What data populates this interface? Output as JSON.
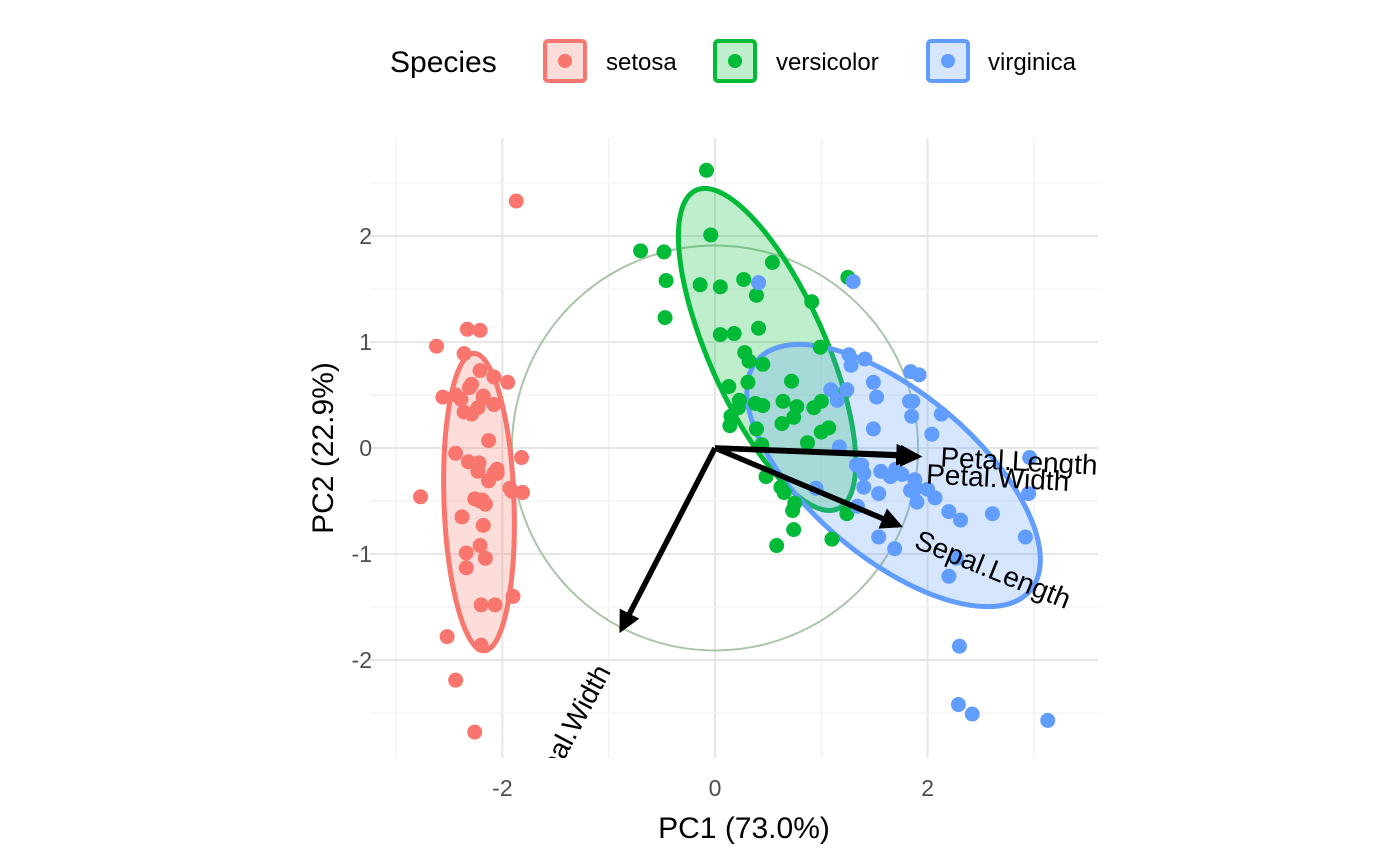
{
  "chart_data": {
    "type": "scatter",
    "subtype": "pca-biplot",
    "title": "",
    "xlabel": "PC1 (73.0%)",
    "ylabel": "PC2 (22.9%)",
    "xlim": [
      -3,
      3.6
    ],
    "ylim": [
      -2.9,
      2.9
    ],
    "x_ticks": [
      -2,
      0,
      2
    ],
    "y_ticks": [
      -2,
      -1,
      0,
      1,
      2
    ],
    "grid": true,
    "legend": {
      "title": "Species",
      "position": "top",
      "entries": [
        "setosa",
        "versicolor",
        "virginica"
      ]
    },
    "colors": {
      "setosa": "#F8766D",
      "versicolor": "#00BA38",
      "virginica": "#619CFF",
      "arrow": "#000000",
      "circle": "#a8c5a8",
      "grid_major": "#e6e6e6",
      "grid_minor": "#f0f0f0"
    },
    "series": [
      {
        "name": "setosa",
        "points": [
          [
            -2.26,
            -0.48
          ],
          [
            -2.08,
            0.67
          ],
          [
            -2.36,
            0.34
          ],
          [
            -2.29,
            0.6
          ],
          [
            -2.38,
            -0.65
          ],
          [
            -2.07,
            -1.48
          ],
          [
            -2.44,
            -0.05
          ],
          [
            -2.23,
            -0.22
          ],
          [
            -2.33,
            1.12
          ],
          [
            -2.18,
            0.47
          ],
          [
            -2.16,
            -1.04
          ],
          [
            -2.32,
            -0.13
          ],
          [
            -2.21,
            0.73
          ],
          [
            -2.62,
            0.96
          ],
          [
            -2.2,
            -1.86
          ],
          [
            -2.26,
            -2.68
          ],
          [
            -2.2,
            -1.48
          ],
          [
            -2.19,
            -0.49
          ],
          [
            -1.9,
            -1.4
          ],
          [
            -2.34,
            -1.13
          ],
          [
            -1.91,
            -0.41
          ],
          [
            -2.21,
            -0.92
          ],
          [
            -2.77,
            -0.46
          ],
          [
            -1.82,
            -0.09
          ],
          [
            -2.22,
            -0.14
          ],
          [
            -1.95,
            0.62
          ],
          [
            -2.05,
            -0.24
          ],
          [
            -2.16,
            -0.53
          ],
          [
            -2.13,
            -0.31
          ],
          [
            -2.23,
            0.38
          ],
          [
            -2.08,
            0.41
          ],
          [
            -1.81,
            -0.42
          ],
          [
            -2.44,
            -2.19
          ],
          [
            -2.52,
            -1.78
          ],
          [
            -2.18,
            0.49
          ],
          [
            -2.31,
            0.57
          ],
          [
            -1.87,
            2.33
          ],
          [
            -2.39,
            0.46
          ],
          [
            -2.29,
            0.32
          ],
          [
            -2.21,
            -0.5
          ],
          [
            -2.34,
            -0.99
          ],
          [
            -2.21,
            1.11
          ],
          [
            -2.56,
            0.48
          ],
          [
            -2.18,
            -0.73
          ],
          [
            -1.93,
            -0.38
          ],
          [
            -2.36,
            0.89
          ],
          [
            -2.08,
            -0.24
          ],
          [
            -2.44,
            0.5
          ],
          [
            -2.05,
            -0.2
          ],
          [
            -2.13,
            0.07
          ]
        ]
      },
      {
        "name": "versicolor",
        "points": [
          [
            1.1,
            -0.86
          ],
          [
            0.73,
            -0.59
          ],
          [
            1.24,
            -0.62
          ],
          [
            0.39,
            1.44
          ],
          [
            1.07,
            0.19
          ],
          [
            0.38,
            0.42
          ],
          [
            0.74,
            -0.77
          ],
          [
            -0.7,
            1.86
          ],
          [
            0.87,
            0.05
          ],
          [
            -0.04,
            2.01
          ],
          [
            -0.48,
            1.85
          ],
          [
            0.44,
            0.03
          ],
          [
            0.54,
            1.75
          ],
          [
            0.63,
            0.23
          ],
          [
            0.27,
            1.59
          ],
          [
            0.62,
            -0.37
          ],
          [
            0.45,
            0.79
          ],
          [
            0.22,
            0.38
          ],
          [
            0.91,
            1.38
          ],
          [
            0.05,
            1.52
          ],
          [
            0.75,
            -0.52
          ],
          [
            0.45,
            0.4
          ],
          [
            1.23,
            0.54
          ],
          [
            0.64,
            0.44
          ],
          [
            0.72,
            0.63
          ],
          [
            0.93,
            0.38
          ],
          [
            1.0,
            0.44
          ],
          [
            1.0,
            0.15
          ],
          [
            0.48,
            -0.27
          ],
          [
            -0.08,
            2.62
          ],
          [
            0.05,
            1.07
          ],
          [
            -0.14,
            1.54
          ],
          [
            0.13,
            0.58
          ],
          [
            1.25,
            1.61
          ],
          [
            0.39,
            0.18
          ],
          [
            0.58,
            -0.92
          ],
          [
            0.65,
            -0.42
          ],
          [
            0.99,
            0.95
          ],
          [
            0.15,
            0.3
          ],
          [
            0.18,
            1.08
          ],
          [
            0.41,
            1.13
          ],
          [
            0.74,
            0.29
          ],
          [
            0.14,
            0.21
          ],
          [
            -0.46,
            1.58
          ],
          [
            0.32,
            0.82
          ],
          [
            0.23,
            0.45
          ],
          [
            0.31,
            0.62
          ],
          [
            0.77,
            0.39
          ],
          [
            -0.47,
            1.23
          ],
          [
            0.28,
            0.9
          ]
        ]
      },
      {
        "name": "virginica",
        "points": [
          [
            1.65,
            -0.27
          ],
          [
            1.28,
            0.78
          ],
          [
            2.3,
            -1.87
          ],
          [
            1.4,
            -0.37
          ],
          [
            1.85,
            0.3
          ],
          [
            2.92,
            -0.84
          ],
          [
            0.41,
            1.56
          ],
          [
            2.42,
            -2.51
          ],
          [
            2.2,
            -0.6
          ],
          [
            2.13,
            0.32
          ],
          [
            1.33,
            -0.16
          ],
          [
            1.7,
            -0.2
          ],
          [
            1.9,
            -0.51
          ],
          [
            1.3,
            1.57
          ],
          [
            1.52,
            0.48
          ],
          [
            1.54,
            -0.43
          ],
          [
            1.56,
            -0.22
          ],
          [
            3.13,
            -2.57
          ],
          [
            2.96,
            -0.09
          ],
          [
            1.26,
            0.88
          ],
          [
            1.38,
            -0.16
          ],
          [
            1.84,
            0.72
          ],
          [
            2.29,
            -2.42
          ],
          [
            1.24,
            0.55
          ],
          [
            2.27,
            -1.04
          ],
          [
            1.69,
            -0.95
          ],
          [
            1.49,
            0.62
          ],
          [
            1.54,
            -0.84
          ],
          [
            1.83,
            0.44
          ],
          [
            2.07,
            -0.47
          ],
          [
            2.2,
            -1.21
          ],
          [
            2.95,
            -0.43
          ],
          [
            1.86,
            0.44
          ],
          [
            1.09,
            0.55
          ],
          [
            1.41,
            0.84
          ],
          [
            2.61,
            -0.62
          ],
          [
            1.84,
            -0.4
          ],
          [
            1.15,
            0.45
          ],
          [
            1.49,
            0.18
          ],
          [
            1.88,
            -0.3
          ],
          [
            2.31,
            -0.68
          ],
          [
            1.4,
            -0.24
          ],
          [
            1.89,
            -0.38
          ],
          [
            2.04,
            0.13
          ],
          [
            2.0,
            -0.39
          ],
          [
            1.92,
            0.69
          ],
          [
            1.17,
            0.01
          ],
          [
            1.76,
            -0.25
          ],
          [
            1.34,
            -0.55
          ],
          [
            0.95,
            -0.38
          ]
        ]
      }
    ],
    "ellipses": [
      {
        "name": "setosa",
        "center": [
          -2.22,
          -0.51
        ],
        "semi_axis_major": 1.4,
        "semi_axis_minor": 0.33,
        "angle_deg": 92
      },
      {
        "name": "versicolor",
        "center": [
          0.49,
          0.93
        ],
        "semi_axis_major": 1.64,
        "semi_axis_minor": 0.55,
        "angle_deg": 114
      },
      {
        "name": "virginica",
        "center": [
          1.68,
          -0.26
        ],
        "semi_axis_major": 1.68,
        "semi_axis_minor": 0.78,
        "angle_deg": 140
      }
    ],
    "correlation_circle": {
      "center": [
        0,
        0
      ],
      "radius": 1.91
    },
    "loadings": [
      {
        "name": "Petal.Length",
        "x": 1.91,
        "y": -0.08
      },
      {
        "name": "Petal.Width",
        "x": 1.87,
        "y": -0.07
      },
      {
        "name": "Sepal.Length",
        "x": 1.73,
        "y": -0.73
      },
      {
        "name": "Sepal.Width",
        "x": -0.88,
        "y": -1.71
      }
    ],
    "loading_labels": [
      "Petal.Length",
      "Petal.Width",
      "Sepal.Length",
      "Sepal.Width"
    ]
  }
}
